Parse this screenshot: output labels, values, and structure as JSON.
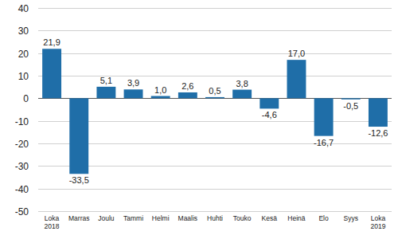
{
  "chart_data": {
    "type": "bar",
    "categories": [
      "Loka\n2018",
      "Marras",
      "Joulu",
      "Tammi",
      "Helmi",
      "Maalis",
      "Huhti",
      "Touko",
      "Kesä",
      "Heinä",
      "Elo",
      "Syys",
      "Loka\n2019"
    ],
    "values": [
      21.9,
      -33.5,
      5.1,
      3.9,
      1.0,
      2.6,
      0.5,
      3.8,
      -4.6,
      17.0,
      -16.7,
      -0.5,
      -12.6
    ],
    "value_labels": [
      "21,9",
      "-33,5",
      "5,1",
      "3,9",
      "1,0",
      "2,6",
      "0,5",
      "3,8",
      "-4,6",
      "17,0",
      "-16,7",
      "-0,5",
      "-12,6"
    ],
    "color": "#1f6ea8",
    "ylim": [
      -50,
      40
    ],
    "yticks": [
      -50,
      -40,
      -30,
      -20,
      -10,
      0,
      10,
      20,
      30,
      40
    ],
    "grid": true,
    "data_labels": true
  }
}
